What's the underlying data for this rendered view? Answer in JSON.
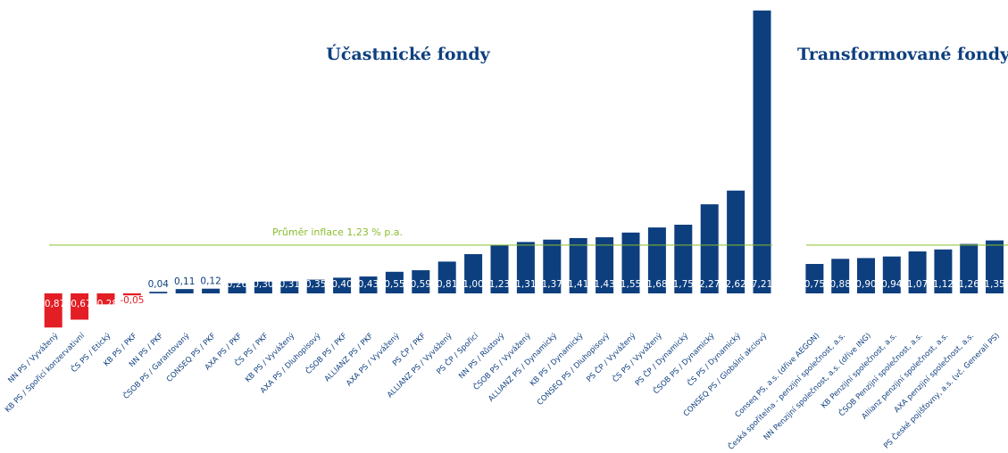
{
  "chart_data": [
    {
      "type": "bar",
      "title": "Účastnické fondy",
      "categories": [
        "NN PS / Vyvážený",
        "KB PS / Spořicí konzervativní",
        "ČS PS / Etický",
        "KB PS / PKF",
        "NN PS / PKF",
        "ČSOB PS / Garantovaný",
        "CONSEQ PS / PKF",
        "AXA PS / PKF",
        "ČS PS / PKF",
        "KB PS / Vyvážený",
        "AXA PS / Dluhopisový",
        "ČSOB PS / PKF",
        "ALLIANZ PS / PKF",
        "AXA PS / Vyvážený",
        "PS ČP / PKF",
        "ALLIANZ PS / Vyvážený",
        "PS ČP / Spořicí",
        "NN PS / Růstový",
        "ČSOB PS / Vyvážený",
        "ALLIANZ PS / Dynamický",
        "KB PS / Dynamický",
        "CONSEQ PS / Dluhopisový",
        "PS ČP / Vyvážený",
        "ČS PS / Vyvážený",
        "PS ČP / Dynamický",
        "ČSOB PS / Dynamický",
        "ČS PS / Dynamický",
        "CONSEQ PS / Globální akciový"
      ],
      "values": [
        -0.87,
        -0.67,
        -0.28,
        -0.05,
        0.04,
        0.11,
        0.12,
        0.26,
        0.3,
        0.31,
        0.35,
        0.4,
        0.43,
        0.55,
        0.59,
        0.81,
        1.0,
        1.23,
        1.31,
        1.37,
        1.41,
        1.43,
        1.55,
        1.68,
        1.75,
        2.27,
        2.62,
        7.21
      ],
      "value_labels": [
        "-0,87",
        "-0,67",
        "-0,28",
        "-0,05",
        "0,04",
        "0,11",
        "0,12",
        "0,26",
        "0,30",
        "0,31",
        "0,35",
        "0,40",
        "0,43",
        "0,55",
        "0,59",
        "0,81",
        "1,00",
        "1,23",
        "1,31",
        "1,37",
        "1,41",
        "1,43",
        "1,55",
        "1,68",
        "1,75",
        "2,27",
        "2,62",
        "7,21"
      ],
      "color": "#0d3f7f",
      "negative_color": "#e31e24",
      "reference_line": 1.23,
      "reference_color": "#8cbd2e",
      "annotation": "Průměr inflace 1,23 % p.a.",
      "ylim": [
        -1,
        7.25
      ]
    },
    {
      "type": "bar",
      "title": "Transformované fondy",
      "categories": [
        "Conseq PS, a.s. (dříve AEGON)",
        "Česká spořitelna - penzijní společnost, a.s.",
        "NN Penzijní společnost, a.s. (dříve ING)",
        "KB Penzijní společnost, a.s.",
        "ČSOB Penzijní společnost, a.s.",
        "Allianz penzijní společnost, a.s.",
        "AXA penzijní společnost, a.s.",
        "PS České pojišťovny, a.s. (vč. Generali PS)"
      ],
      "values": [
        0.75,
        0.88,
        0.9,
        0.94,
        1.07,
        1.12,
        1.26,
        1.35
      ],
      "value_labels": [
        "0,75",
        "0,88",
        "0,90",
        "0,94",
        "1,07",
        "1,12",
        "1,26",
        "1,35"
      ],
      "color": "#0d3f7f",
      "reference_line": 1.23,
      "reference_color": "#8cbd2e",
      "ylim": [
        -1,
        7.25
      ]
    }
  ]
}
